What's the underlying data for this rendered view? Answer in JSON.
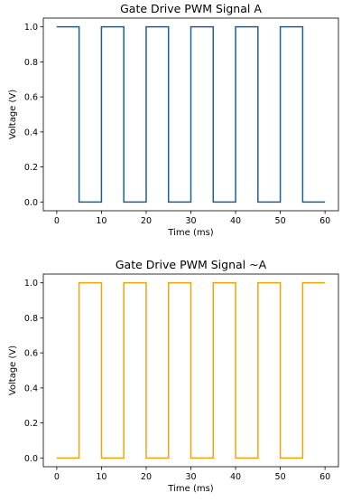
{
  "chart_data": [
    {
      "type": "line",
      "title": "Gate Drive PWM Signal A",
      "xlabel": "Time (ms)",
      "ylabel": "Voltage (V)",
      "xlim": [
        -3,
        63
      ],
      "ylim": [
        -0.05,
        1.05
      ],
      "xticks": [
        "0",
        "10",
        "20",
        "30",
        "40",
        "50",
        "60"
      ],
      "yticks": [
        "0.0",
        "0.2",
        "0.4",
        "0.6",
        "0.8",
        "1.0"
      ],
      "grid": false,
      "step": "post",
      "color": "#1f5f8b",
      "series": [
        {
          "x": [
            0,
            5,
            10,
            15,
            20,
            25,
            30,
            35,
            40,
            45,
            50,
            55,
            60
          ],
          "values": [
            1,
            0,
            1,
            0,
            1,
            0,
            1,
            0,
            1,
            0,
            1,
            0,
            0
          ]
        }
      ]
    },
    {
      "type": "line",
      "title": "Gate Drive PWM Signal ~A",
      "xlabel": "Time (ms)",
      "ylabel": "Voltage (V)",
      "xlim": [
        -3,
        63
      ],
      "ylim": [
        -0.05,
        1.05
      ],
      "xticks": [
        "0",
        "10",
        "20",
        "30",
        "40",
        "50",
        "60"
      ],
      "yticks": [
        "0.0",
        "0.2",
        "0.4",
        "0.6",
        "0.8",
        "1.0"
      ],
      "grid": false,
      "step": "post",
      "color": "#f0a30a",
      "series": [
        {
          "x": [
            0,
            5,
            10,
            15,
            20,
            25,
            30,
            35,
            40,
            45,
            50,
            55,
            60
          ],
          "values": [
            0,
            1,
            0,
            1,
            0,
            1,
            0,
            1,
            0,
            1,
            0,
            1,
            1
          ]
        }
      ]
    }
  ]
}
